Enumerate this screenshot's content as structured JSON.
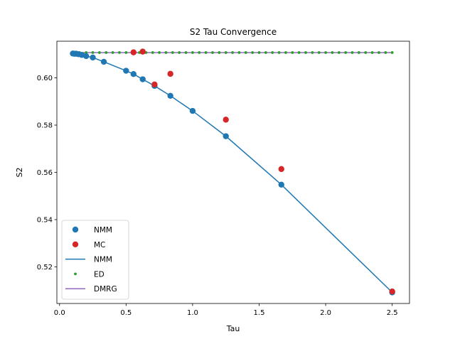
{
  "chart_data": {
    "type": "scatter",
    "title": "S2 Tau Convergence",
    "xlabel": "Tau",
    "ylabel": "S2",
    "xlim": [
      -0.02,
      2.63
    ],
    "ylim": [
      0.5045,
      0.6155
    ],
    "xticks": [
      0.0,
      0.5,
      1.0,
      1.5,
      2.0,
      2.5
    ],
    "xtick_labels": [
      "0.0",
      "0.5",
      "1.0",
      "1.5",
      "2.0",
      "2.5"
    ],
    "yticks": [
      0.52,
      0.54,
      0.56,
      0.58,
      0.6
    ],
    "ytick_labels": [
      "0.52",
      "0.54",
      "0.56",
      "0.58",
      "0.60"
    ],
    "grid": false,
    "legend_position": "lower-left",
    "series": [
      {
        "name": "NMM",
        "kind": "scatter",
        "color": "#1f77b4",
        "x": [
          0.1,
          0.111,
          0.125,
          0.143,
          0.167,
          0.2,
          0.25,
          0.333,
          0.5,
          0.556,
          0.625,
          0.714,
          0.833,
          1.0,
          1.25,
          1.667,
          2.5
        ],
        "y": [
          0.6103,
          0.6102,
          0.6102,
          0.61,
          0.6097,
          0.6092,
          0.6086,
          0.6068,
          0.603,
          0.6016,
          0.5994,
          0.5966,
          0.5924,
          0.586,
          0.5753,
          0.5548,
          0.5092
        ]
      },
      {
        "name": "MC",
        "kind": "scatter",
        "color": "#d62728",
        "x": [
          0.556,
          0.625,
          0.714,
          0.833,
          1.25,
          1.667,
          2.5
        ],
        "y": [
          0.6108,
          0.6111,
          0.5972,
          0.6017,
          0.5823,
          0.5614,
          0.5096
        ]
      },
      {
        "name": "NMM",
        "kind": "line",
        "color": "#1f77b4",
        "x": [
          0.1,
          0.111,
          0.125,
          0.143,
          0.167,
          0.2,
          0.25,
          0.333,
          0.5,
          0.556,
          0.625,
          0.714,
          0.833,
          1.0,
          1.25,
          1.667,
          2.5
        ],
        "y": [
          0.6103,
          0.6102,
          0.6102,
          0.61,
          0.6097,
          0.6092,
          0.6086,
          0.6068,
          0.603,
          0.6016,
          0.5994,
          0.5966,
          0.5924,
          0.586,
          0.5753,
          0.5548,
          0.5092
        ]
      },
      {
        "name": "ED",
        "kind": "dots",
        "color": "#2ca02c",
        "x": [
          0.1,
          0.15,
          0.2,
          0.25,
          0.3,
          0.35,
          0.4,
          0.45,
          0.5,
          0.55,
          0.6,
          0.65,
          0.7,
          0.75,
          0.8,
          0.85,
          0.9,
          0.95,
          1.0,
          1.05,
          1.1,
          1.15,
          1.2,
          1.25,
          1.3,
          1.35,
          1.4,
          1.45,
          1.5,
          1.55,
          1.6,
          1.65,
          1.7,
          1.75,
          1.8,
          1.85,
          1.9,
          1.95,
          2.0,
          2.05,
          2.1,
          2.15,
          2.2,
          2.25,
          2.3,
          2.35,
          2.4,
          2.45,
          2.5
        ],
        "y": [
          0.6107,
          0.6107,
          0.6107,
          0.6107,
          0.6107,
          0.6107,
          0.6107,
          0.6107,
          0.6107,
          0.6107,
          0.6107,
          0.6107,
          0.6107,
          0.6107,
          0.6107,
          0.6107,
          0.6107,
          0.6107,
          0.6107,
          0.6107,
          0.6107,
          0.6107,
          0.6107,
          0.6107,
          0.6107,
          0.6107,
          0.6107,
          0.6107,
          0.6107,
          0.6107,
          0.6107,
          0.6107,
          0.6107,
          0.6107,
          0.6107,
          0.6107,
          0.6107,
          0.6107,
          0.6107,
          0.6107,
          0.6107,
          0.6107,
          0.6107,
          0.6107,
          0.6107,
          0.6107,
          0.6107,
          0.6107,
          0.6107
        ]
      },
      {
        "name": "DMRG",
        "kind": "line",
        "color": "#9467bd",
        "x": [
          0.1,
          2.5
        ],
        "y": [
          0.6107,
          0.6107
        ]
      }
    ]
  }
}
